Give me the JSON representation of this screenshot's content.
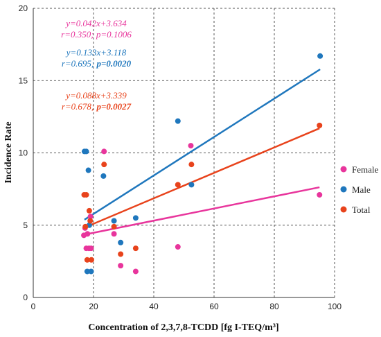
{
  "chart_data": {
    "type": "scatter",
    "xlabel": "Concentration of 2,3,7,8-TCDD [fg I-TEQ/m³]",
    "ylabel": "Incidence Rate",
    "xlim": [
      0,
      100
    ],
    "ylim": [
      0,
      20
    ],
    "xticks": [
      0,
      20,
      40,
      60,
      80,
      100
    ],
    "yticks": [
      0,
      5,
      10,
      15,
      20
    ],
    "grid": "dashed",
    "legend_position": "right",
    "series": [
      {
        "name": "Female",
        "color": "#e8359c",
        "points": [
          [
            16.8,
            4.3
          ],
          [
            17.2,
            4.8
          ],
          [
            17.6,
            3.4
          ],
          [
            18.0,
            4.4
          ],
          [
            18.5,
            3.4
          ],
          [
            19.0,
            5.6
          ],
          [
            19.2,
            3.4
          ],
          [
            23.5,
            10.1
          ],
          [
            26.8,
            4.4
          ],
          [
            29.0,
            2.2
          ],
          [
            34.0,
            1.8
          ],
          [
            48.0,
            3.5
          ],
          [
            52.3,
            10.5
          ],
          [
            95.0,
            7.1
          ]
        ],
        "fit": {
          "slope": 0.042,
          "intercept": 3.634
        },
        "equation": "y=0.042x+3.634",
        "stats": "r=0.350; p=0.1006"
      },
      {
        "name": "Male",
        "color": "#1f77bd",
        "points": [
          [
            17.0,
            10.1
          ],
          [
            17.6,
            10.1
          ],
          [
            17.9,
            1.8
          ],
          [
            18.3,
            8.8
          ],
          [
            18.6,
            5.0
          ],
          [
            19.2,
            1.8
          ],
          [
            23.3,
            8.4
          ],
          [
            26.8,
            5.3
          ],
          [
            29.0,
            3.8
          ],
          [
            34.0,
            5.5
          ],
          [
            48.0,
            12.2
          ],
          [
            52.5,
            7.8
          ],
          [
            95.2,
            16.7
          ]
        ],
        "fit": {
          "slope": 0.133,
          "intercept": 3.118
        },
        "equation": "y=0.133x+3.118",
        "stats": "r=0.695; p=0.0020"
      },
      {
        "name": "Total",
        "color": "#e8431c",
        "points": [
          [
            16.9,
            7.1
          ],
          [
            17.3,
            4.9
          ],
          [
            17.6,
            7.1
          ],
          [
            17.9,
            2.6
          ],
          [
            18.6,
            6.0
          ],
          [
            18.9,
            5.3
          ],
          [
            19.3,
            2.6
          ],
          [
            23.5,
            9.2
          ],
          [
            26.8,
            4.9
          ],
          [
            29.0,
            3.0
          ],
          [
            34.0,
            3.4
          ],
          [
            48.0,
            7.8
          ],
          [
            52.5,
            9.2
          ],
          [
            95.0,
            11.9
          ]
        ],
        "fit": {
          "slope": 0.088,
          "intercept": 3.339
        },
        "equation": "y=0.088x+3.339",
        "stats": "r=0.678; p=0.0027"
      }
    ]
  },
  "annotations": [
    {
      "line1": "y=0.042x+3.634",
      "r": "r=0.350;",
      "p": "p=0.1006",
      "bold_p": false,
      "color": "#e8359c"
    },
    {
      "line1": "y=0.133x+3.118",
      "r": "r=0.695;",
      "p": "p=0.0020",
      "bold_p": true,
      "color": "#1f77bd"
    },
    {
      "line1": "y=0.088x+3.339",
      "r": "r=0.678;",
      "p": "p=0.0027",
      "bold_p": true,
      "color": "#e8431c"
    }
  ],
  "legend": [
    "Female",
    "Male",
    "Total"
  ]
}
